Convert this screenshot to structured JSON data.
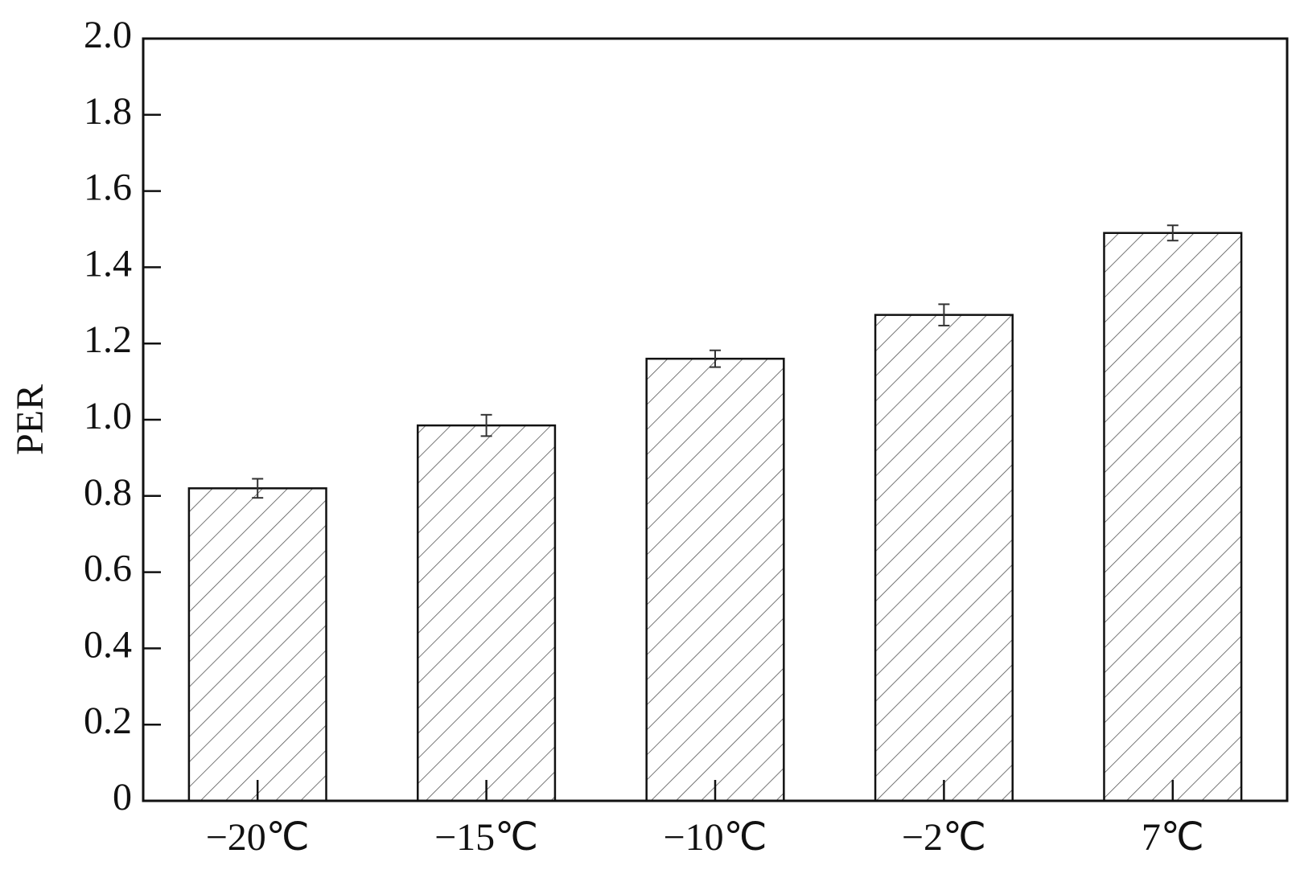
{
  "chart_data": {
    "type": "bar",
    "y_label": "PER",
    "categories": [
      "−20℃",
      "−15℃",
      "−10℃",
      "−2℃",
      "7℃"
    ],
    "values": [
      0.82,
      0.985,
      1.16,
      1.275,
      1.49
    ],
    "errors": [
      0.025,
      0.028,
      0.022,
      0.028,
      0.02
    ],
    "color": "#ffffff",
    "hatch_color": "#555555",
    "ylim": [
      0,
      2
    ],
    "yticks": [
      0,
      0.2,
      0.4,
      0.6,
      0.8,
      {
        "value": 1,
        "label": "1.0"
      },
      1.2,
      1.4,
      1.6,
      1.8,
      {
        "value": 2,
        "label": "2.0"
      }
    ]
  }
}
